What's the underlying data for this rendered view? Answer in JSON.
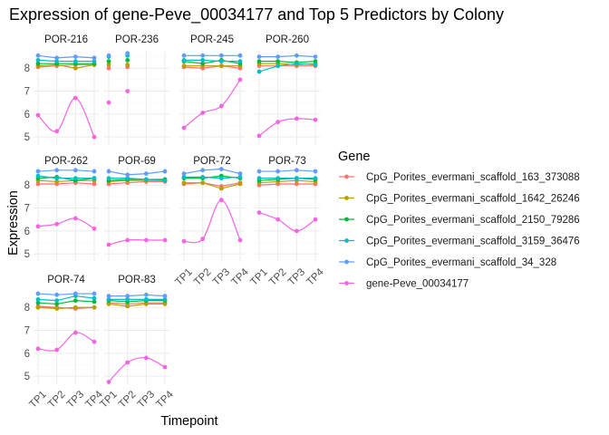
{
  "chart_data": {
    "type": "line",
    "title": "Expression of gene-Peve_00034177 and Top 5 Predictors by Colony",
    "xlabel": "Timepoint",
    "ylabel": "Expression",
    "x": [
      "TP1",
      "TP2",
      "TP3",
      "TP4"
    ],
    "y_ticks": [
      5,
      6,
      7,
      8
    ],
    "ylim": [
      4.65,
      8.8
    ],
    "legend_title": "Gene",
    "legend_position": "right",
    "series_names": [
      "CpG_Porites_evermani_scaffold_163_373088",
      "CpG_Porites_evermani_scaffold_1642_26246",
      "CpG_Porites_evermani_scaffold_2150_79286",
      "CpG_Porites_evermani_scaffold_3159_36476",
      "CpG_Porites_evermani_scaffold_34_328",
      "gene-Peve_00034177"
    ],
    "series_colors": [
      "#F8766D",
      "#B79F00",
      "#00BA38",
      "#00BFC4",
      "#619CFF",
      "#F564E3"
    ],
    "panels": [
      {
        "colony": "POR-216",
        "values": [
          [
            8.05,
            8.1,
            8.15,
            8.15
          ],
          [
            8.1,
            8.15,
            8.0,
            8.15
          ],
          [
            8.2,
            8.2,
            8.2,
            8.2
          ],
          [
            8.35,
            8.3,
            8.3,
            8.3
          ],
          [
            8.55,
            8.45,
            8.5,
            8.45
          ],
          [
            5.95,
            5.25,
            6.7,
            5.0
          ]
        ]
      },
      {
        "colony": "POR-236",
        "values": [
          [
            8.0,
            8.05,
            null,
            null
          ],
          [
            8.15,
            8.15,
            null,
            null
          ],
          [
            8.3,
            8.35,
            null,
            null
          ],
          [
            8.5,
            8.55,
            null,
            null
          ],
          [
            8.55,
            8.65,
            null,
            null
          ],
          [
            6.5,
            7.0,
            null,
            null
          ]
        ]
      },
      {
        "colony": "POR-245",
        "values": [
          [
            8.05,
            8.0,
            8.1,
            8.0
          ],
          [
            8.1,
            8.1,
            8.1,
            8.1
          ],
          [
            8.3,
            8.2,
            8.35,
            8.2
          ],
          [
            8.35,
            8.35,
            8.3,
            8.3
          ],
          [
            8.55,
            8.55,
            8.55,
            8.55
          ],
          [
            5.4,
            6.05,
            6.35,
            7.5
          ]
        ]
      },
      {
        "colony": "POR-260",
        "values": [
          [
            8.1,
            8.1,
            8.1,
            8.1
          ],
          [
            8.2,
            8.2,
            8.15,
            8.2
          ],
          [
            8.3,
            8.3,
            8.25,
            8.3
          ],
          [
            7.85,
            8.1,
            8.2,
            8.15
          ],
          [
            8.5,
            8.5,
            8.55,
            8.5
          ],
          [
            5.05,
            5.65,
            5.8,
            5.75
          ]
        ]
      },
      {
        "colony": "POR-262",
        "values": [
          [
            8.05,
            8.05,
            8.1,
            8.05
          ],
          [
            8.2,
            8.15,
            8.2,
            8.2
          ],
          [
            8.3,
            8.35,
            8.2,
            8.3
          ],
          [
            8.4,
            8.3,
            8.3,
            8.3
          ],
          [
            8.6,
            8.65,
            8.65,
            8.6
          ],
          [
            6.2,
            6.3,
            6.55,
            6.1
          ]
        ]
      },
      {
        "colony": "POR-69",
        "values": [
          [
            8.05,
            8.1,
            8.15,
            8.15
          ],
          [
            8.15,
            8.2,
            8.2,
            8.2
          ],
          [
            8.2,
            8.25,
            8.25,
            8.25
          ],
          [
            8.3,
            8.3,
            8.25,
            8.2
          ],
          [
            8.6,
            8.45,
            8.5,
            8.6
          ],
          [
            5.4,
            5.6,
            5.6,
            5.6
          ]
        ]
      },
      {
        "colony": "POR-72",
        "values": [
          [
            8.05,
            8.1,
            7.95,
            8.1
          ],
          [
            8.1,
            8.1,
            7.85,
            8.05
          ],
          [
            8.3,
            8.3,
            8.4,
            8.3
          ],
          [
            8.35,
            8.35,
            8.3,
            8.35
          ],
          [
            8.5,
            8.65,
            8.7,
            8.5
          ],
          [
            5.55,
            5.65,
            7.35,
            5.6
          ]
        ]
      },
      {
        "colony": "POR-73",
        "values": [
          [
            8.0,
            8.05,
            8.05,
            8.05
          ],
          [
            8.1,
            8.15,
            8.2,
            8.15
          ],
          [
            8.2,
            8.25,
            8.3,
            8.25
          ],
          [
            8.3,
            8.3,
            8.3,
            8.3
          ],
          [
            8.6,
            8.6,
            8.65,
            8.6
          ],
          [
            6.8,
            6.5,
            6.0,
            6.5
          ]
        ]
      },
      {
        "colony": "POR-74",
        "values": [
          [
            8.05,
            8.0,
            7.95,
            8.0
          ],
          [
            8.0,
            7.95,
            8.0,
            8.0
          ],
          [
            8.2,
            8.15,
            8.3,
            8.25
          ],
          [
            8.35,
            8.3,
            8.5,
            8.4
          ],
          [
            8.6,
            8.55,
            8.6,
            8.6
          ],
          [
            6.2,
            6.15,
            6.9,
            6.5
          ]
        ]
      },
      {
        "colony": "POR-83",
        "values": [
          [
            8.2,
            8.15,
            8.2,
            8.2
          ],
          [
            8.15,
            8.05,
            8.15,
            8.15
          ],
          [
            8.3,
            8.25,
            8.3,
            8.3
          ],
          [
            8.35,
            8.35,
            8.35,
            8.35
          ],
          [
            8.5,
            8.5,
            8.55,
            8.5
          ],
          [
            4.75,
            5.6,
            5.8,
            5.4
          ]
        ]
      }
    ]
  }
}
